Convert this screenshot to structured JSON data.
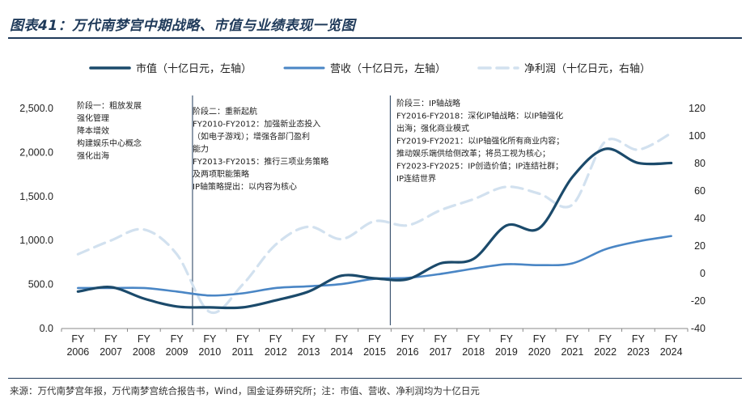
{
  "title": "图表41：万代南梦宫中期战略、市值与业绩表现一览图",
  "source": "来源：万代南梦宫年报，万代南梦宫统合报告书，Wind，国金证券研究所；注：市值、营收、净利润均为十亿日元",
  "chart_data": {
    "type": "line",
    "categories": [
      "FY 2006",
      "FY 2007",
      "FY 2008",
      "FY 2009",
      "FY 2010",
      "FY 2011",
      "FY 2012",
      "FY 2013",
      "FY 2014",
      "FY 2015",
      "FY 2016",
      "FY 2017",
      "FY 2018",
      "FY 2019",
      "FY 2020",
      "FY 2021",
      "FY 2022",
      "FY 2023",
      "FY 2024"
    ],
    "x_tick_top": [
      "FY",
      "FY",
      "FY",
      "FY",
      "FY",
      "FY",
      "FY",
      "FY",
      "FY",
      "FY",
      "FY",
      "FY",
      "FY",
      "FY",
      "FY",
      "FY",
      "FY",
      "FY",
      "FY"
    ],
    "x_tick_bottom": [
      "2006",
      "2007",
      "2008",
      "2009",
      "2010",
      "2011",
      "2012",
      "2013",
      "2014",
      "2015",
      "2016",
      "2017",
      "2018",
      "2019",
      "2020",
      "2021",
      "2022",
      "2023",
      "2024"
    ],
    "y_left": {
      "ylim": [
        0,
        2500
      ],
      "ticks": [
        "0.0",
        "500.0",
        "1,000.0",
        "1,500.0",
        "2,000.0",
        "2,500.0"
      ]
    },
    "y_right": {
      "ylim": [
        -40,
        120
      ],
      "ticks": [
        "-40",
        "-20",
        "0",
        "20",
        "40",
        "60",
        "80",
        "100",
        "120"
      ]
    },
    "series": [
      {
        "name": "市值（十亿日元，左轴）",
        "axis": "left",
        "color": "#1b4a6b",
        "style": "solid-thick",
        "values": [
          420,
          470,
          340,
          250,
          240,
          240,
          320,
          420,
          600,
          570,
          560,
          740,
          790,
          1170,
          1140,
          1720,
          2040,
          1880,
          1880
        ]
      },
      {
        "name": "营收（十亿日元，左轴）",
        "axis": "left",
        "color": "#4a86c5",
        "style": "solid",
        "values": [
          460,
          460,
          460,
          420,
          375,
          400,
          460,
          480,
          505,
          565,
          575,
          620,
          680,
          730,
          720,
          740,
          900,
          990,
          1050
        ]
      },
      {
        "name": "净利润（十亿日元，右轴）",
        "axis": "right",
        "color": "#d2e1ef",
        "style": "dashed",
        "values": [
          14,
          24,
          32,
          14,
          -28,
          -8,
          21,
          34,
          25,
          38,
          35,
          46,
          54,
          63,
          58,
          50,
          96,
          90,
          102
        ]
      }
    ],
    "phase_dividers_after": [
      "FY 2009",
      "FY 2015"
    ],
    "annotations": [
      {
        "lines": [
          "阶段一：粗放发展",
          "强化管理",
          "降本增效",
          "构建娱乐中心概念",
          "强化出海"
        ]
      },
      {
        "lines": [
          "阶段二：重新起航",
          "FY2010-FY2012：加强新业态投入",
          "（如电子游戏）；增强各部门盈利",
          "能力",
          "FY2013-FY2015：推行三项业务策略",
          "及两项职能策略",
          "IP轴策略提出：以内容为核心"
        ]
      },
      {
        "lines": [
          "阶段三：IP轴战略",
          "FY2016-FY2018：深化IP轴战略：以IP轴强化",
          "出海；强化商业模式",
          "FY2019-FY2021：以IP轴强化所有商业内容；",
          "推动娱乐端供给侧改革；将员工视为核心；",
          "FY2023-FY2025：IP创造价值；IP连结社群；",
          "IP连结世界"
        ]
      }
    ]
  }
}
